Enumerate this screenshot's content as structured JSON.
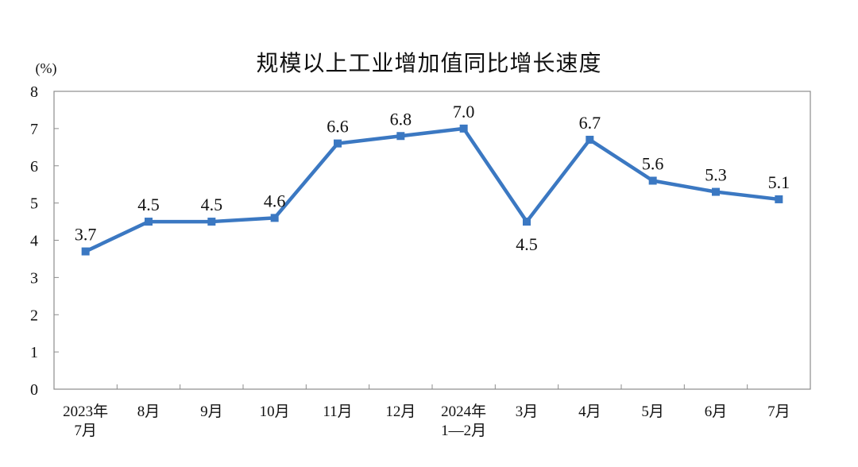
{
  "chart_data": {
    "type": "line",
    "title": "规模以上工业增加值同比增长速度",
    "y_unit": "(%)",
    "ylim": [
      0,
      8
    ],
    "yticks": [
      0,
      1,
      2,
      3,
      4,
      5,
      6,
      7,
      8
    ],
    "categories": [
      [
        "2023年",
        "7月"
      ],
      [
        "8月"
      ],
      [
        "9月"
      ],
      [
        "10月"
      ],
      [
        "11月"
      ],
      [
        "12月"
      ],
      [
        "2024年",
        "1—2月"
      ],
      [
        "3月"
      ],
      [
        "4月"
      ],
      [
        "5月"
      ],
      [
        "6月"
      ],
      [
        "7月"
      ]
    ],
    "series": [
      {
        "values": [
          3.7,
          4.5,
          4.5,
          4.6,
          6.6,
          6.8,
          7.0,
          4.5,
          6.7,
          5.6,
          5.3,
          5.1
        ],
        "labels": [
          "3.7",
          "4.5",
          "4.5",
          "4.6",
          "6.6",
          "6.8",
          "7.0",
          "4.5",
          "6.7",
          "5.6",
          "5.3",
          "5.1"
        ],
        "color": "#3b78c2"
      }
    ],
    "grid": false,
    "legend": "none"
  }
}
